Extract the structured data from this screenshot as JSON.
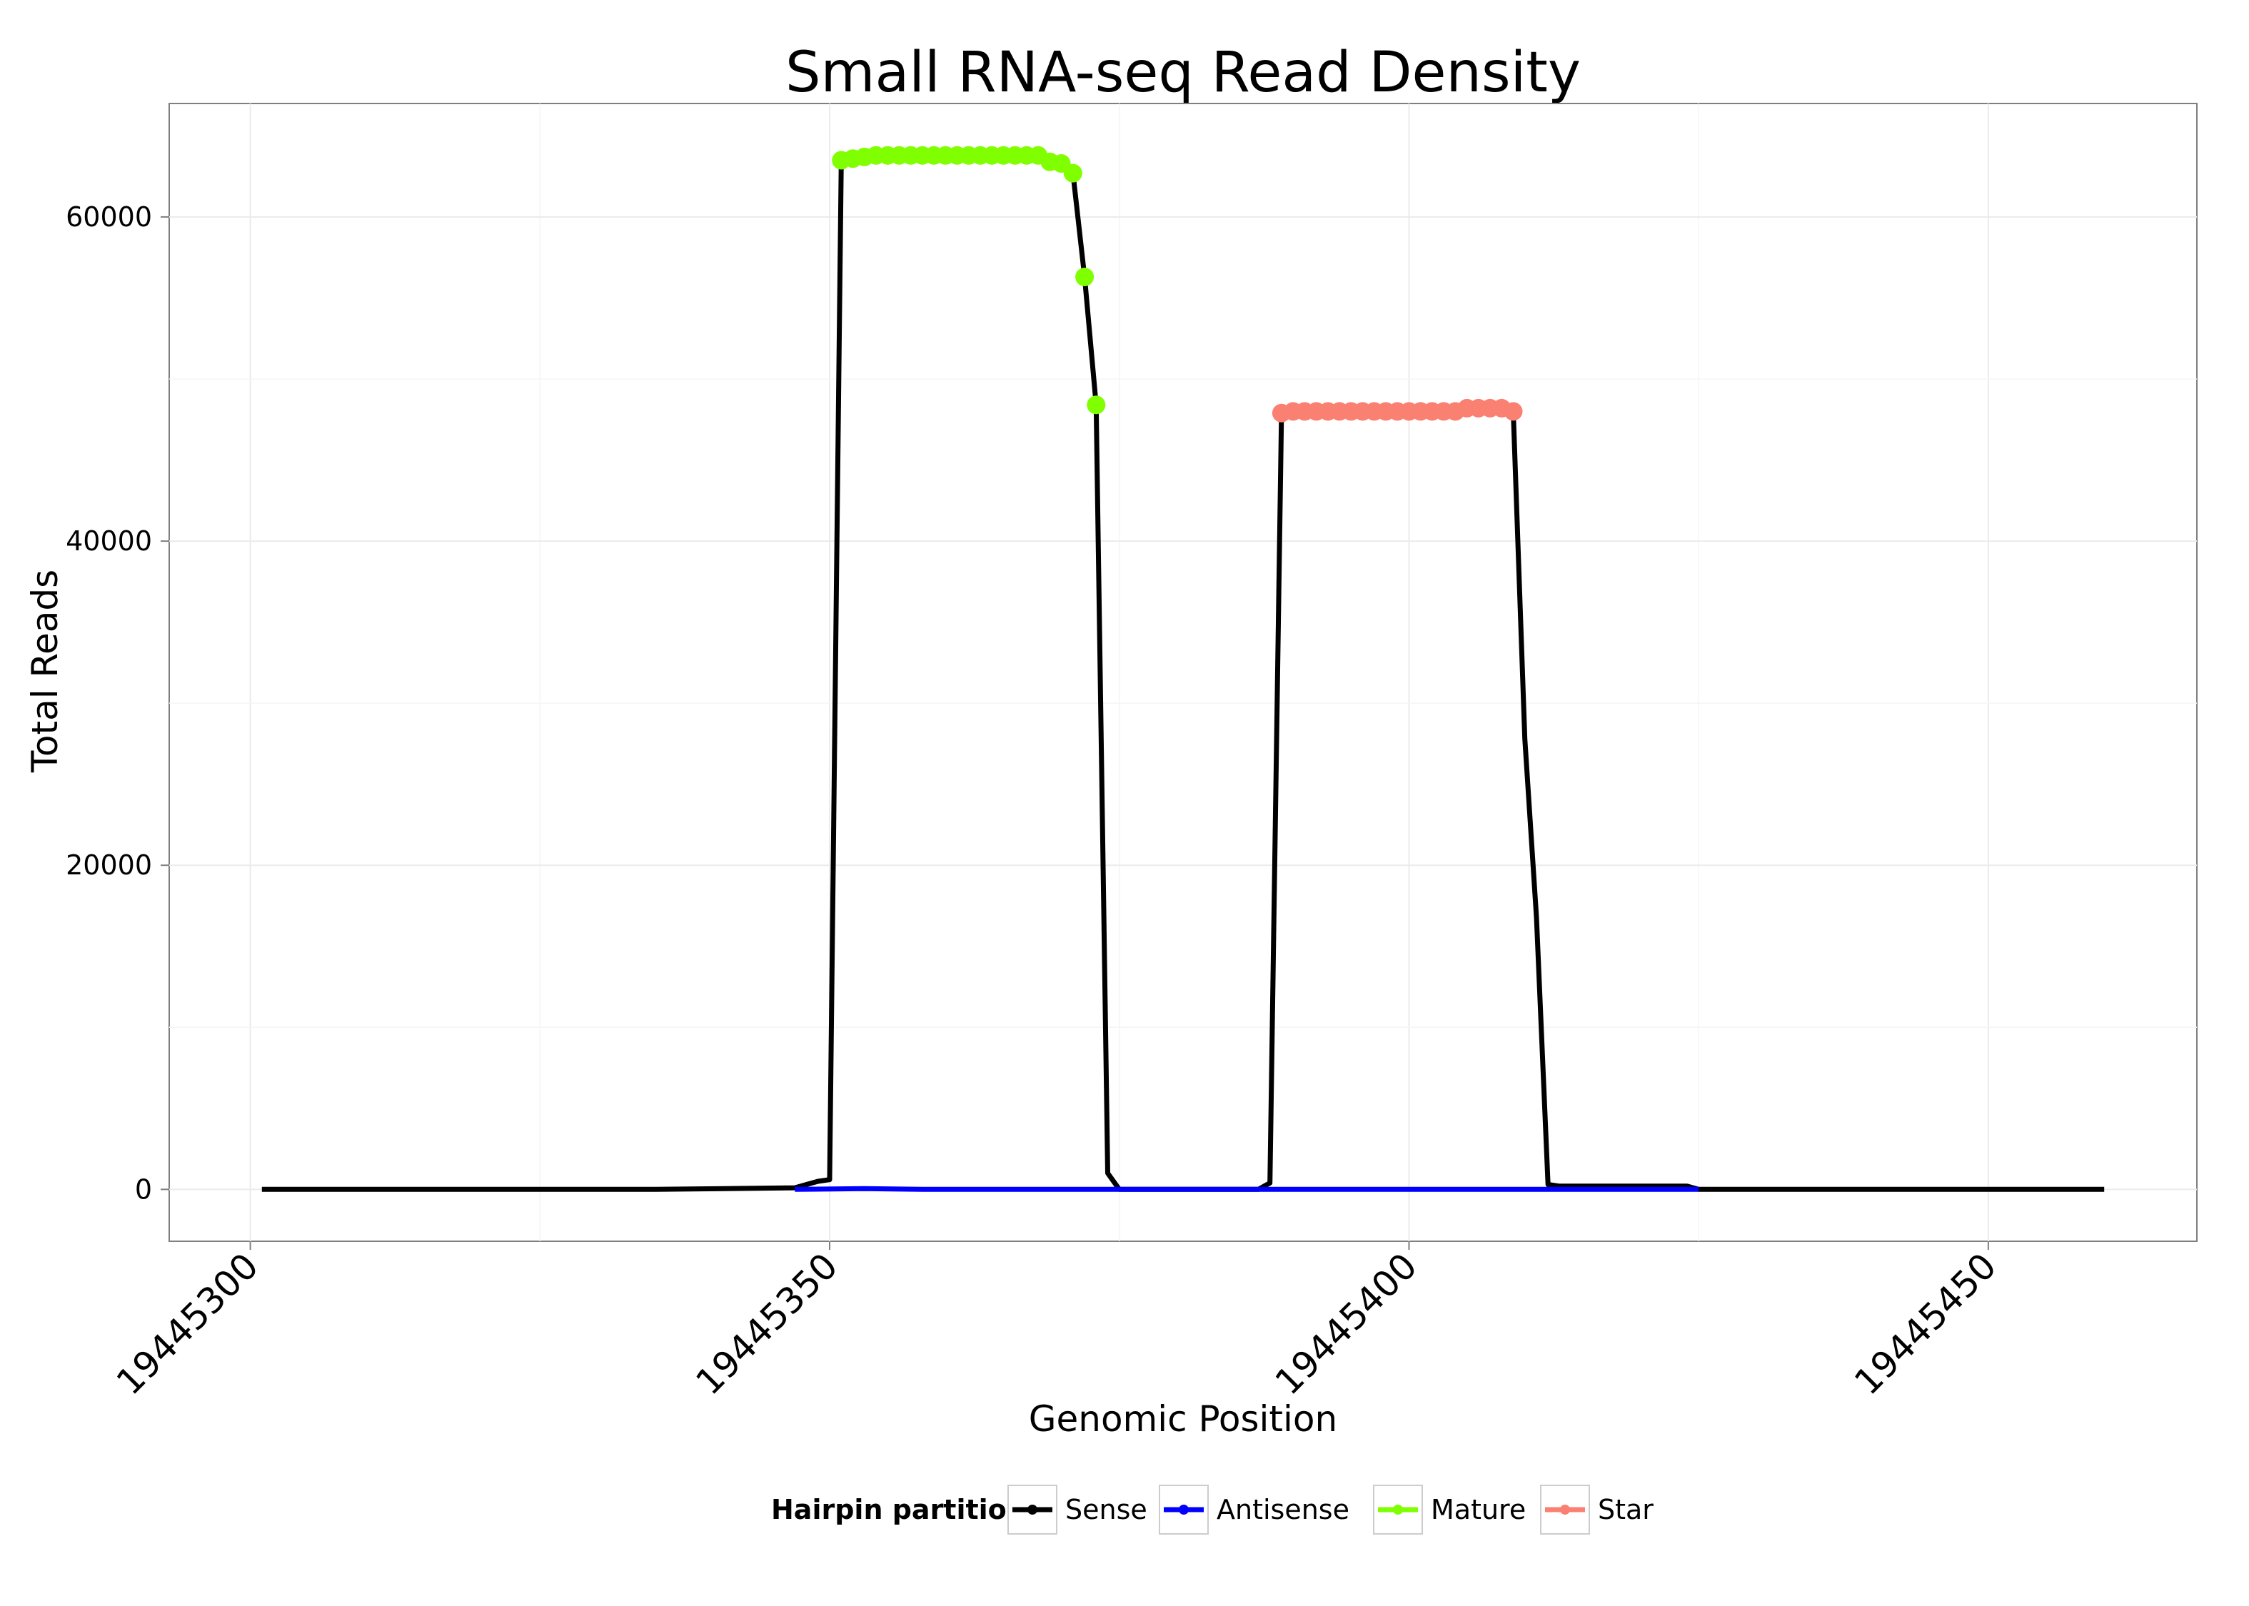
{
  "chart_data": {
    "type": "line",
    "title": "Small RNA-seq Read Density",
    "xlabel": "Genomic Position",
    "ylabel": "Total Reads",
    "xlim": [
      19445293,
      19445468
    ],
    "ylim": [
      -3200,
      67000
    ],
    "x_ticks": [
      19445300,
      19445350,
      19445400,
      19445450
    ],
    "x_tick_labels": [
      "19445300",
      "19445350",
      "19445400",
      "19445450"
    ],
    "y_ticks": [
      0,
      20000,
      40000,
      60000
    ],
    "y_tick_labels": [
      "0",
      "20000",
      "40000",
      "60000"
    ],
    "grid": true,
    "legend": {
      "title": "Hairpin partition",
      "position": "bottom"
    },
    "series": [
      {
        "name": "Sense",
        "color": "#000000",
        "marker": false,
        "points": [
          [
            19445301,
            0
          ],
          [
            19445335,
            0
          ],
          [
            19445347,
            100
          ],
          [
            19445348,
            300
          ],
          [
            19445349,
            500
          ],
          [
            19445350,
            600
          ],
          [
            19445351,
            63500
          ],
          [
            19445352,
            63600
          ],
          [
            19445353,
            63700
          ],
          [
            19445354,
            63800
          ],
          [
            19445355,
            63800
          ],
          [
            19445356,
            63800
          ],
          [
            19445357,
            63800
          ],
          [
            19445358,
            63800
          ],
          [
            19445359,
            63800
          ],
          [
            19445360,
            63800
          ],
          [
            19445361,
            63800
          ],
          [
            19445362,
            63800
          ],
          [
            19445363,
            63800
          ],
          [
            19445364,
            63800
          ],
          [
            19445365,
            63800
          ],
          [
            19445366,
            63800
          ],
          [
            19445367,
            63800
          ],
          [
            19445368,
            63800
          ],
          [
            19445369,
            63400
          ],
          [
            19445370,
            63300
          ],
          [
            19445371,
            62700
          ],
          [
            19445372,
            56300
          ],
          [
            19445373,
            48400
          ],
          [
            19445374,
            1000
          ],
          [
            19445375,
            0
          ],
          [
            19445387,
            0
          ],
          [
            19445388,
            400
          ],
          [
            19445389,
            47900
          ],
          [
            19445390,
            48000
          ],
          [
            19445391,
            48000
          ],
          [
            19445392,
            48000
          ],
          [
            19445393,
            48000
          ],
          [
            19445394,
            48000
          ],
          [
            19445395,
            48000
          ],
          [
            19445396,
            48000
          ],
          [
            19445397,
            48000
          ],
          [
            19445398,
            48000
          ],
          [
            19445399,
            48000
          ],
          [
            19445400,
            48000
          ],
          [
            19445401,
            48000
          ],
          [
            19445402,
            48000
          ],
          [
            19445403,
            48000
          ],
          [
            19445404,
            48000
          ],
          [
            19445405,
            48200
          ],
          [
            19445406,
            48200
          ],
          [
            19445407,
            48200
          ],
          [
            19445408,
            48200
          ],
          [
            19445409,
            48000
          ],
          [
            19445410,
            27800
          ],
          [
            19445411,
            16800
          ],
          [
            19445412,
            300
          ],
          [
            19445413,
            200
          ],
          [
            19445424,
            200
          ],
          [
            19445425,
            0
          ],
          [
            19445460,
            0
          ]
        ]
      },
      {
        "name": "Antisense",
        "color": "#0000ff",
        "marker": false,
        "points": [
          [
            19445347,
            0
          ],
          [
            19445353,
            50
          ],
          [
            19445358,
            0
          ],
          [
            19445425,
            0
          ]
        ]
      },
      {
        "name": "Mature",
        "color": "#7fff00",
        "marker": true,
        "points": [
          [
            19445351,
            63500
          ],
          [
            19445352,
            63600
          ],
          [
            19445353,
            63700
          ],
          [
            19445354,
            63800
          ],
          [
            19445355,
            63800
          ],
          [
            19445356,
            63800
          ],
          [
            19445357,
            63800
          ],
          [
            19445358,
            63800
          ],
          [
            19445359,
            63800
          ],
          [
            19445360,
            63800
          ],
          [
            19445361,
            63800
          ],
          [
            19445362,
            63800
          ],
          [
            19445363,
            63800
          ],
          [
            19445364,
            63800
          ],
          [
            19445365,
            63800
          ],
          [
            19445366,
            63800
          ],
          [
            19445367,
            63800
          ],
          [
            19445368,
            63800
          ],
          [
            19445369,
            63400
          ],
          [
            19445370,
            63300
          ],
          [
            19445371,
            62700
          ],
          [
            19445372,
            56300
          ],
          [
            19445373,
            48400
          ]
        ]
      },
      {
        "name": "Star",
        "color": "#fa8072",
        "marker": true,
        "points": [
          [
            19445389,
            47900
          ],
          [
            19445390,
            48000
          ],
          [
            19445391,
            48000
          ],
          [
            19445392,
            48000
          ],
          [
            19445393,
            48000
          ],
          [
            19445394,
            48000
          ],
          [
            19445395,
            48000
          ],
          [
            19445396,
            48000
          ],
          [
            19445397,
            48000
          ],
          [
            19445398,
            48000
          ],
          [
            19445399,
            48000
          ],
          [
            19445400,
            48000
          ],
          [
            19445401,
            48000
          ],
          [
            19445402,
            48000
          ],
          [
            19445403,
            48000
          ],
          [
            19445404,
            48000
          ],
          [
            19445405,
            48200
          ],
          [
            19445406,
            48200
          ],
          [
            19445407,
            48200
          ],
          [
            19445408,
            48200
          ],
          [
            19445409,
            48000
          ]
        ]
      }
    ]
  }
}
